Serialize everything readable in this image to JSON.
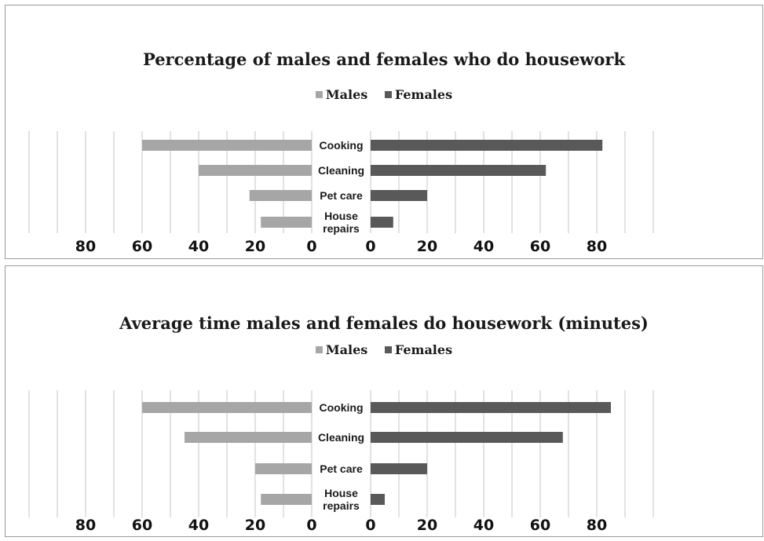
{
  "chart_data": [
    {
      "type": "bar",
      "title": "Percentage of males and females who do housework",
      "legend": [
        "Males",
        "Females"
      ],
      "legend_position": "top",
      "categories": [
        "Cooking",
        "Cleaning",
        "Pet care",
        "House repairs"
      ],
      "category_lines": [
        [
          "Cooking"
        ],
        [
          "Cleaning"
        ],
        [
          "Pet care"
        ],
        [
          "House",
          "repairs"
        ]
      ],
      "series": [
        {
          "name": "Males",
          "values": [
            60,
            40,
            22,
            18
          ],
          "color": "#a6a6a6"
        },
        {
          "name": "Females",
          "values": [
            82,
            62,
            20,
            8
          ],
          "color": "#595959"
        }
      ],
      "left_ticks": [
        "80",
        "60",
        "40",
        "20",
        "0"
      ],
      "right_ticks": [
        "0",
        "20",
        "40",
        "60",
        "80"
      ],
      "xlim": [
        0,
        100
      ],
      "grid": true
    },
    {
      "type": "bar",
      "title": "Average time males and females do housework (minutes)",
      "legend": [
        "Males",
        "Females"
      ],
      "legend_position": "top",
      "categories": [
        "Cooking",
        "Cleaning",
        "Pet care",
        "House repairs"
      ],
      "category_lines": [
        [
          "Cooking"
        ],
        [
          "Cleaning"
        ],
        [
          "Pet care"
        ],
        [
          "House",
          "repairs"
        ]
      ],
      "series": [
        {
          "name": "Males",
          "values": [
            60,
            45,
            20,
            18
          ],
          "color": "#a6a6a6"
        },
        {
          "name": "Females",
          "values": [
            85,
            68,
            20,
            5
          ],
          "color": "#595959"
        }
      ],
      "left_ticks": [
        "80",
        "60",
        "40",
        "20",
        "0"
      ],
      "right_ticks": [
        "0",
        "20",
        "40",
        "60",
        "80"
      ],
      "xlim": [
        0,
        100
      ],
      "grid": true
    }
  ]
}
